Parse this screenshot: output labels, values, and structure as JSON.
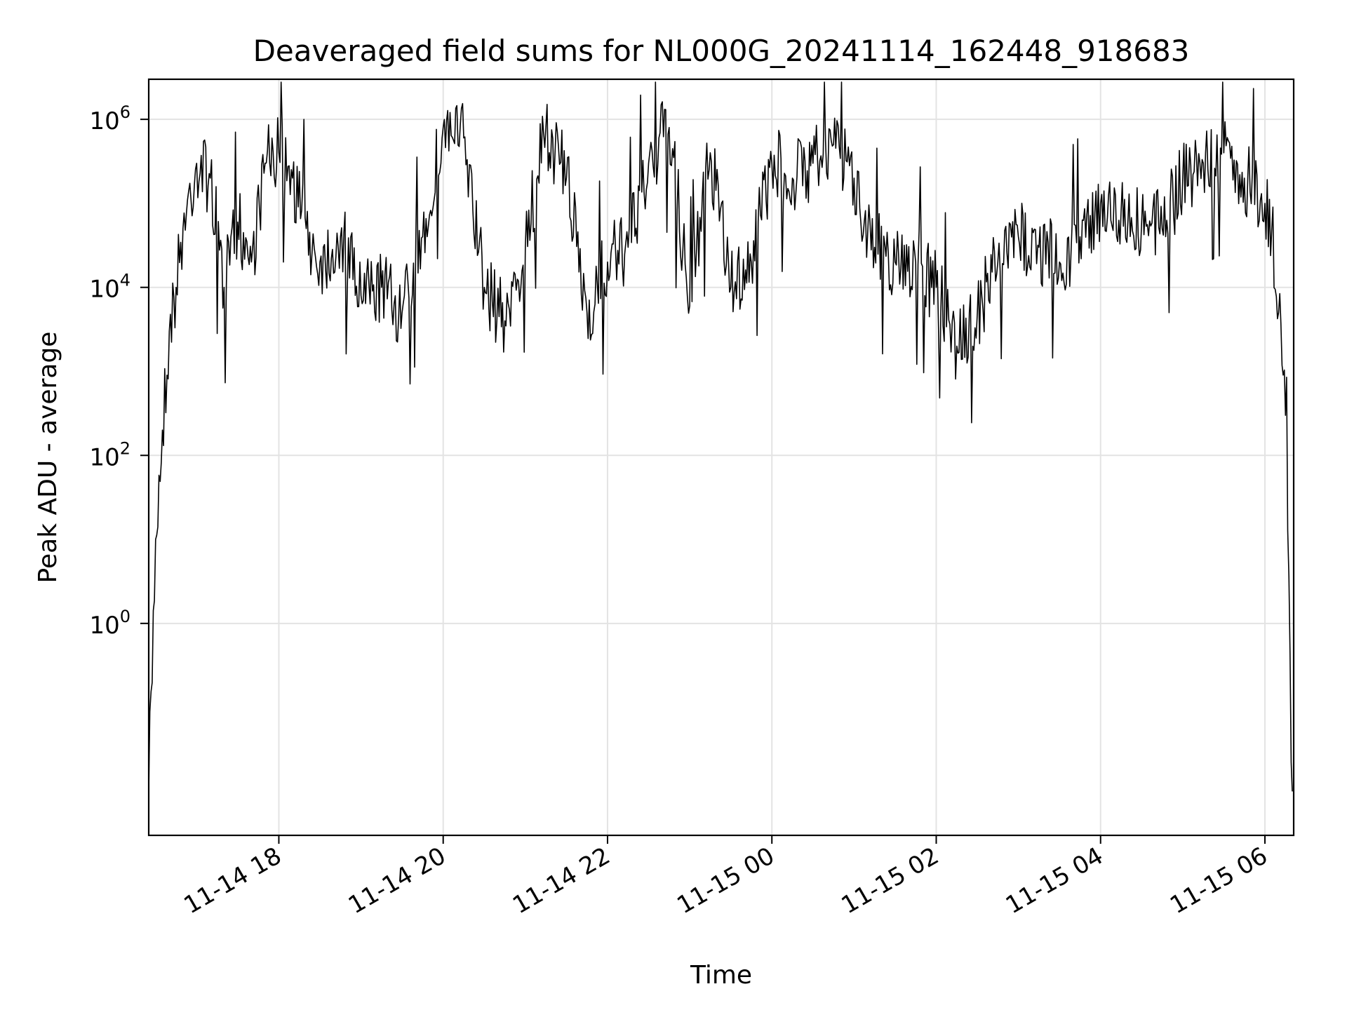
{
  "chart_data": {
    "type": "line",
    "title": "Deaveraged field sums for NL000G_20241114_162448_918683",
    "xlabel": "Time",
    "ylabel": "Peak ADU - average",
    "yscale": "log",
    "ylim": [
      0.003,
      3000000
    ],
    "xlim": [
      "2024-11-14 16:25",
      "2024-11-15 06:21"
    ],
    "grid": true,
    "line_color": "#000000",
    "x_ticks": [
      {
        "x": "2024-11-14 18:00",
        "label": "11-14 18"
      },
      {
        "x": "2024-11-14 20:00",
        "label": "11-14 20"
      },
      {
        "x": "2024-11-14 22:00",
        "label": "11-14 22"
      },
      {
        "x": "2024-11-15 00:00",
        "label": "11-15 00"
      },
      {
        "x": "2024-11-15 02:00",
        "label": "11-15 02"
      },
      {
        "x": "2024-11-15 04:00",
        "label": "11-15 04"
      },
      {
        "x": "2024-11-15 06:00",
        "label": "11-15 06"
      }
    ],
    "y_ticks": [
      {
        "value": 1,
        "base": "10",
        "exp": "0"
      },
      {
        "value": 100,
        "base": "10",
        "exp": "2"
      },
      {
        "value": 10000,
        "base": "10",
        "exp": "4"
      },
      {
        "value": 1000000,
        "base": "10",
        "exp": "6"
      }
    ],
    "series": [
      {
        "x": [
          "2024-11-14 16:25",
          "2024-11-14 16:30",
          "2024-11-14 16:35",
          "2024-11-14 16:40",
          "2024-11-14 16:45",
          "2024-11-14 16:50",
          "2024-11-14 17:00",
          "2024-11-14 17:10",
          "2024-11-14 17:20",
          "2024-11-14 17:30",
          "2024-11-14 17:40",
          "2024-11-14 17:50",
          "2024-11-14 18:00",
          "2024-11-14 18:10",
          "2024-11-14 18:20",
          "2024-11-14 18:30",
          "2024-11-14 18:45",
          "2024-11-14 19:00",
          "2024-11-14 19:15",
          "2024-11-14 19:30",
          "2024-11-14 19:45",
          "2024-11-14 20:00",
          "2024-11-14 20:15",
          "2024-11-14 20:30",
          "2024-11-14 20:45",
          "2024-11-14 21:00",
          "2024-11-14 21:15",
          "2024-11-14 21:30",
          "2024-11-14 21:45",
          "2024-11-14 22:00",
          "2024-11-14 22:15",
          "2024-11-14 22:30",
          "2024-11-14 22:45",
          "2024-11-14 23:00",
          "2024-11-14 23:15",
          "2024-11-14 23:30",
          "2024-11-14 23:45",
          "2024-11-15 00:00",
          "2024-11-15 00:15",
          "2024-11-15 00:30",
          "2024-11-15 00:45",
          "2024-11-15 01:00",
          "2024-11-15 01:15",
          "2024-11-15 01:30",
          "2024-11-15 01:45",
          "2024-11-15 02:00",
          "2024-11-15 02:15",
          "2024-11-15 02:30",
          "2024-11-15 02:45",
          "2024-11-15 03:00",
          "2024-11-15 03:15",
          "2024-11-15 03:30",
          "2024-11-15 03:45",
          "2024-11-15 04:00",
          "2024-11-15 04:15",
          "2024-11-15 04:30",
          "2024-11-15 04:45",
          "2024-11-15 05:00",
          "2024-11-15 05:15",
          "2024-11-15 05:30",
          "2024-11-15 05:45",
          "2024-11-15 06:00",
          "2024-11-15 06:05",
          "2024-11-15 06:10",
          "2024-11-15 06:15",
          "2024-11-15 06:20"
        ],
        "y": [
          0.01,
          10,
          200,
          3000,
          10000,
          50000,
          300000,
          200000,
          10000,
          60000,
          20000,
          300000,
          400000,
          200000,
          50000,
          20000,
          40000,
          8000,
          10000,
          5000,
          40000,
          800000,
          600000,
          10000,
          4000,
          30000,
          800000,
          200000,
          5000,
          20000,
          30000,
          300000,
          800000,
          6000,
          400000,
          10000,
          20000,
          300000,
          200000,
          300000,
          500000,
          200000,
          30000,
          20000,
          20000,
          10000,
          2000,
          5000,
          20000,
          40000,
          30000,
          20000,
          40000,
          100000,
          80000,
          60000,
          50000,
          200000,
          300000,
          400000,
          200000,
          100000,
          50000,
          5000,
          300,
          0.01
        ]
      }
    ]
  }
}
